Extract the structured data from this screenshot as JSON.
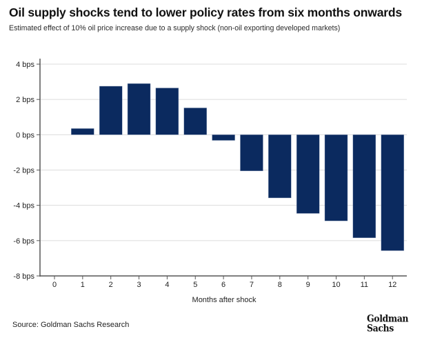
{
  "header": {
    "title": "Oil supply shocks tend to lower policy rates from six months onwards",
    "subtitle": "Estimated effect of 10% oil price increase due to a supply shock (non-oil exporting developed markets)"
  },
  "footer": {
    "source": "Source: Goldman Sachs Research",
    "logo_line1": "Goldman",
    "logo_line2": "Sachs"
  },
  "colors": {
    "bar": "#0b2a5f",
    "grid": "#dcdcdc",
    "axis": "#555555"
  },
  "chart_data": {
    "type": "bar",
    "title": "Oil supply shocks tend to lower policy rates from six months onwards",
    "subtitle": "Estimated effect of 10% oil price increase due to a supply shock (non-oil exporting developed markets)",
    "xlabel": "Months after shock",
    "ylabel": "",
    "categories": [
      "0",
      "1",
      "2",
      "3",
      "4",
      "5",
      "6",
      "7",
      "8",
      "9",
      "10",
      "11",
      "12"
    ],
    "values": [
      null,
      0.35,
      2.75,
      2.9,
      2.65,
      1.52,
      -0.32,
      -2.05,
      -3.58,
      -4.46,
      -4.88,
      -5.84,
      -6.57
    ],
    "unit": "bps",
    "ylim": [
      -8,
      4
    ],
    "yticks": [
      4,
      2,
      0,
      -2,
      -4,
      -6,
      -8
    ],
    "ytick_labels": [
      "4 bps",
      "2 bps",
      "0 bps",
      "-2 bps",
      "-4 bps",
      "-6 bps",
      "-8 bps"
    ],
    "grid": true,
    "legend": "none"
  }
}
